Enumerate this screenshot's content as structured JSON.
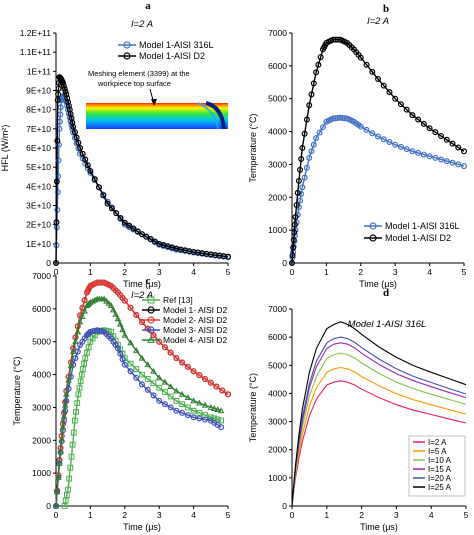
{
  "figure": {
    "panels": [
      "a",
      "b",
      "c",
      "d"
    ]
  },
  "chart_data": [
    {
      "id": "a",
      "type": "line",
      "panel_label": "a",
      "title": "I=2 A",
      "xlabel": "Time (μs)",
      "ylabel": "HFL (W/m²)",
      "xlim": [
        0,
        5
      ],
      "ylim": [
        0,
        120000000000
      ],
      "x_ticks": [
        0,
        1,
        2,
        3,
        4,
        5
      ],
      "y_ticks": [
        0,
        10000000000,
        20000000000,
        30000000000,
        40000000000,
        50000000000,
        60000000000,
        70000000000,
        80000000000,
        90000000000,
        100000000000,
        110000000000,
        120000000000
      ],
      "y_tick_labels": [
        "0",
        "1E+10",
        "2E+10",
        "3E+10",
        "4E+10",
        "5E+10",
        "6E+10",
        "7E+10",
        "8E+10",
        "9E+10",
        "1E+11",
        "1.1E+11",
        "1.2E+11"
      ],
      "grid": false,
      "legend_position": "top-right",
      "annotation": "Meshing element (3399) at the workpiece top surface",
      "series": [
        {
          "name": "Model 1-AISI 316L",
          "color": "#4472c4",
          "marker": "circle",
          "x": [
            0,
            0.05,
            0.1,
            0.15,
            0.2,
            0.3,
            0.4,
            0.5,
            0.7,
            1.0,
            1.5,
            2.0,
            2.5,
            3.0,
            3.5,
            4.0,
            4.5,
            5.0
          ],
          "values": [
            0,
            37000000000,
            70000000000,
            85000000000,
            87000000000,
            84000000000,
            76000000000,
            68000000000,
            57000000000,
            47000000000,
            32000000000,
            20000000000,
            15000000000,
            9500000000,
            7000000000,
            5500000000,
            4200000000,
            3000000000
          ]
        },
        {
          "name": "Model 1-AISI D2",
          "color": "#000000",
          "marker": "circle",
          "x": [
            0,
            0.05,
            0.1,
            0.15,
            0.2,
            0.3,
            0.4,
            0.5,
            0.7,
            1.0,
            1.5,
            2.0,
            2.5,
            3.0,
            3.5,
            4.0,
            4.5,
            5.0
          ],
          "values": [
            0,
            85000000000,
            97000000000,
            96000000000,
            94000000000,
            88000000000,
            80000000000,
            71000000000,
            60000000000,
            48000000000,
            31000000000,
            21000000000,
            15000000000,
            10000000000,
            7500000000,
            5800000000,
            4500000000,
            3300000000
          ]
        }
      ]
    },
    {
      "id": "b",
      "type": "line",
      "panel_label": "b",
      "title": "I=2 A",
      "xlabel": "Time (μs)",
      "ylabel": "Temperature (°C)",
      "xlim": [
        0,
        5
      ],
      "ylim": [
        0,
        7000
      ],
      "x_ticks": [
        0,
        1,
        2,
        3,
        4,
        5
      ],
      "y_ticks": [
        0,
        1000,
        2000,
        3000,
        4000,
        5000,
        6000,
        7000
      ],
      "grid": false,
      "legend_position": "bottom-right",
      "series": [
        {
          "name": "Model 1-AISI 316L",
          "color": "#4472c4",
          "marker": "circle",
          "x": [
            0,
            0.05,
            0.1,
            0.2,
            0.3,
            0.5,
            0.7,
            1.0,
            1.2,
            1.4,
            1.6,
            1.8,
            2.0,
            2.5,
            3.0,
            3.5,
            4.0,
            4.5,
            5.0
          ],
          "values": [
            0,
            500,
            1000,
            1700,
            2300,
            3200,
            3800,
            4300,
            4400,
            4420,
            4400,
            4300,
            4150,
            3850,
            3600,
            3400,
            3250,
            3100,
            2950
          ]
        },
        {
          "name": "Model 1-AISI D2",
          "color": "#000000",
          "marker": "circle",
          "x": [
            0,
            0.05,
            0.1,
            0.2,
            0.3,
            0.5,
            0.7,
            0.9,
            1.0,
            1.2,
            1.4,
            1.6,
            1.8,
            2.0,
            2.5,
            3.0,
            3.5,
            4.0,
            4.5,
            5.0
          ],
          "values": [
            0,
            700,
            1400,
            2500,
            3500,
            4800,
            5800,
            6500,
            6700,
            6800,
            6800,
            6700,
            6500,
            6250,
            5600,
            5000,
            4500,
            4100,
            3750,
            3400
          ]
        }
      ]
    },
    {
      "id": "c",
      "type": "line",
      "panel_label": "c",
      "title": "I=2 A",
      "xlabel": "Time (μs)",
      "ylabel": "Temperature (°C)",
      "xlim": [
        0,
        5
      ],
      "ylim": [
        0,
        7000
      ],
      "x_ticks": [
        0,
        1,
        2,
        3,
        4,
        5
      ],
      "y_ticks": [
        0,
        1000,
        2000,
        3000,
        4000,
        5000,
        6000,
        7000
      ],
      "grid": false,
      "legend_position": "top-right",
      "series": [
        {
          "name": "Ref [13]",
          "color": "#4caf50",
          "marker": "square",
          "x": [
            0.25,
            0.35,
            0.45,
            0.55,
            0.65,
            0.75,
            0.85,
            1.0,
            1.2,
            1.4,
            1.6,
            1.8,
            2.0,
            2.5,
            3.0,
            3.5,
            4.0,
            4.5,
            4.8
          ],
          "values": [
            0,
            500,
            1500,
            2600,
            3400,
            4000,
            4500,
            5000,
            5300,
            5350,
            5300,
            4900,
            4500,
            4000,
            3600,
            3200,
            2900,
            2700,
            2600
          ]
        },
        {
          "name": "Model 1- AISI D2",
          "color": "#000000",
          "marker": "circle",
          "x": [
            0,
            0.1,
            0.2,
            0.3,
            0.5,
            0.7,
            0.9,
            1.0,
            1.2,
            1.4,
            1.6,
            1.8,
            2.0,
            2.5,
            3.0,
            3.5,
            4.0,
            4.5,
            5.0
          ],
          "values": [
            0,
            1400,
            2500,
            3500,
            4800,
            5800,
            6500,
            6700,
            6800,
            6800,
            6700,
            6500,
            6250,
            5600,
            5000,
            4500,
            4100,
            3750,
            3400
          ]
        },
        {
          "name": "Model 2- AISI D2",
          "color": "#e53935",
          "marker": "circle",
          "x": [
            0,
            0.1,
            0.2,
            0.3,
            0.5,
            0.7,
            0.9,
            1.0,
            1.2,
            1.4,
            1.6,
            1.8,
            2.0,
            2.5,
            3.0,
            3.5,
            4.0,
            4.5,
            5.0
          ],
          "values": [
            0,
            1400,
            2500,
            3500,
            4800,
            5800,
            6500,
            6700,
            6800,
            6800,
            6700,
            6500,
            6250,
            5600,
            5000,
            4500,
            4100,
            3750,
            3400
          ]
        },
        {
          "name": "Model 3- AISI D2",
          "color": "#3f51b5",
          "marker": "circle",
          "x": [
            0,
            0.1,
            0.2,
            0.3,
            0.5,
            0.7,
            0.9,
            1.0,
            1.2,
            1.4,
            1.6,
            1.8,
            2.0,
            2.5,
            3.0,
            3.5,
            4.0,
            4.5,
            4.8
          ],
          "values": [
            0,
            1300,
            2300,
            3200,
            4300,
            4900,
            5200,
            5300,
            5350,
            5300,
            5100,
            4800,
            4300,
            3700,
            3200,
            2900,
            2700,
            2600,
            2400
          ]
        },
        {
          "name": "Model 4- AISI D2",
          "color": "#2e7d32",
          "marker": "triangle",
          "x": [
            0,
            0.1,
            0.2,
            0.3,
            0.5,
            0.7,
            0.9,
            1.0,
            1.2,
            1.4,
            1.6,
            1.8,
            2.0,
            2.5,
            3.0,
            3.5,
            4.0,
            4.5,
            4.8
          ],
          "values": [
            0,
            1300,
            2400,
            3400,
            4700,
            5600,
            6100,
            6200,
            6300,
            6300,
            6100,
            5700,
            5200,
            4500,
            3900,
            3500,
            3200,
            3000,
            2900
          ]
        }
      ]
    },
    {
      "id": "d",
      "type": "line",
      "panel_label": "d",
      "title": "Model 1-AISI 316L",
      "xlabel": "Time (μs)",
      "ylabel": "Temperature (°C)",
      "xlim": [
        0,
        5
      ],
      "ylim": [
        0,
        7000
      ],
      "x_ticks": [
        0,
        1,
        2,
        3,
        4,
        5
      ],
      "y_ticks": [
        0,
        1000,
        2000,
        3000,
        4000,
        5000,
        6000,
        7000
      ],
      "grid": false,
      "legend_position": "bottom-right",
      "series": [
        {
          "name": "I=2 A",
          "color": "#e91e63",
          "x": [
            0,
            0.05,
            0.1,
            0.2,
            0.3,
            0.5,
            0.7,
            1.0,
            1.2,
            1.4,
            1.6,
            1.8,
            2.0,
            2.5,
            3.0,
            3.5,
            4.0,
            4.5,
            5.0
          ],
          "values": [
            0,
            500,
            1000,
            1700,
            2300,
            3200,
            3800,
            4300,
            4400,
            4450,
            4400,
            4300,
            4150,
            3850,
            3600,
            3400,
            3250,
            3100,
            2950
          ]
        },
        {
          "name": "I=5 A",
          "color": "#ff9800",
          "x": [
            0,
            0.05,
            0.1,
            0.2,
            0.3,
            0.5,
            0.7,
            1.0,
            1.2,
            1.4,
            1.6,
            1.8,
            2.0,
            2.5,
            3.0,
            3.5,
            4.0,
            4.5,
            5.0
          ],
          "values": [
            0,
            550,
            1100,
            1900,
            2550,
            3550,
            4200,
            4750,
            4870,
            4920,
            4870,
            4760,
            4600,
            4270,
            3990,
            3770,
            3600,
            3430,
            3270
          ]
        },
        {
          "name": "I=10 A",
          "color": "#8bc34a",
          "x": [
            0,
            0.05,
            0.1,
            0.2,
            0.3,
            0.5,
            0.7,
            1.0,
            1.2,
            1.4,
            1.6,
            1.8,
            2.0,
            2.5,
            3.0,
            3.5,
            4.0,
            4.5,
            5.0
          ],
          "values": [
            0,
            600,
            1200,
            2100,
            2800,
            3900,
            4600,
            5250,
            5380,
            5430,
            5380,
            5260,
            5080,
            4710,
            4400,
            4160,
            3970,
            3790,
            3610
          ]
        },
        {
          "name": "I=15 A",
          "color": "#9c27b0",
          "x": [
            0,
            0.05,
            0.1,
            0.2,
            0.3,
            0.5,
            0.7,
            1.0,
            1.2,
            1.4,
            1.6,
            1.8,
            2.0,
            2.5,
            3.0,
            3.5,
            4.0,
            4.5,
            5.0
          ],
          "values": [
            0,
            650,
            1300,
            2250,
            3000,
            4200,
            4950,
            5600,
            5750,
            5800,
            5750,
            5620,
            5430,
            5030,
            4700,
            4450,
            4240,
            4040,
            3850
          ]
        },
        {
          "name": "I=20 A",
          "color": "#3f51b5",
          "x": [
            0,
            0.05,
            0.1,
            0.2,
            0.3,
            0.5,
            0.7,
            1.0,
            1.2,
            1.4,
            1.6,
            1.8,
            2.0,
            2.5,
            3.0,
            3.5,
            4.0,
            4.5,
            5.0
          ],
          "values": [
            0,
            700,
            1350,
            2350,
            3150,
            4350,
            5150,
            5800,
            5950,
            6000,
            5950,
            5820,
            5630,
            5220,
            4870,
            4600,
            4390,
            4180,
            3980
          ]
        },
        {
          "name": "I=25 A",
          "color": "#000000",
          "x": [
            0,
            0.05,
            0.1,
            0.2,
            0.3,
            0.5,
            0.7,
            1.0,
            1.2,
            1.4,
            1.6,
            1.8,
            2.0,
            2.5,
            3.0,
            3.5,
            4.0,
            4.5,
            5.0
          ],
          "values": [
            0,
            750,
            1450,
            2550,
            3450,
            4750,
            5600,
            6300,
            6450,
            6550,
            6450,
            6300,
            6100,
            5650,
            5280,
            4980,
            4750,
            4530,
            4310
          ]
        }
      ]
    }
  ]
}
